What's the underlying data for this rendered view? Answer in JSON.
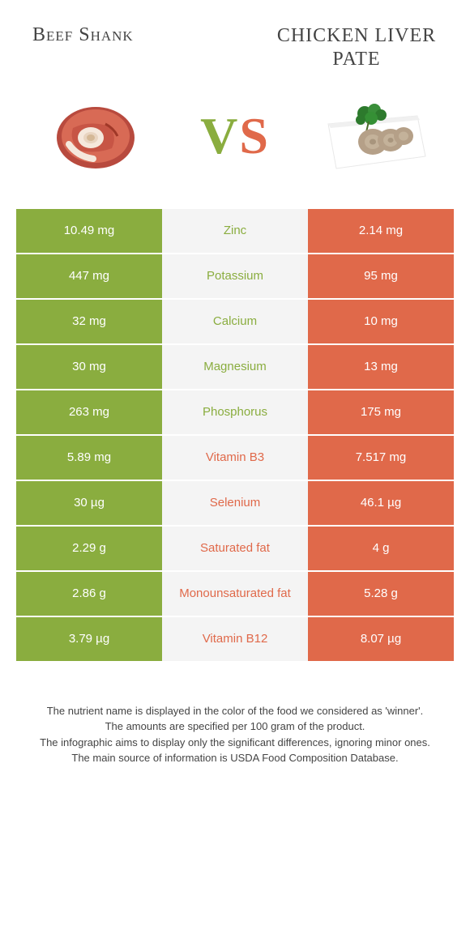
{
  "header": {
    "left_title": "Beef Shank",
    "right_title": "CHICKEN LIVER PATE",
    "vs": "VS"
  },
  "colors": {
    "green": "#8aad3f",
    "orange": "#e0694a",
    "mid_bg": "#f4f4f4"
  },
  "rows": [
    {
      "label": "Zinc",
      "left": "10.49 mg",
      "right": "2.14 mg",
      "winner": "left"
    },
    {
      "label": "Potassium",
      "left": "447 mg",
      "right": "95 mg",
      "winner": "left"
    },
    {
      "label": "Calcium",
      "left": "32 mg",
      "right": "10 mg",
      "winner": "left"
    },
    {
      "label": "Magnesium",
      "left": "30 mg",
      "right": "13 mg",
      "winner": "left"
    },
    {
      "label": "Phosphorus",
      "left": "263 mg",
      "right": "175 mg",
      "winner": "left"
    },
    {
      "label": "Vitamin B3",
      "left": "5.89 mg",
      "right": "7.517 mg",
      "winner": "right"
    },
    {
      "label": "Selenium",
      "left": "30 µg",
      "right": "46.1 µg",
      "winner": "right"
    },
    {
      "label": "Saturated fat",
      "left": "2.29 g",
      "right": "4 g",
      "winner": "right"
    },
    {
      "label": "Monounsaturated fat",
      "left": "2.86 g",
      "right": "5.28 g",
      "winner": "right"
    },
    {
      "label": "Vitamin B12",
      "left": "3.79 µg",
      "right": "8.07 µg",
      "winner": "right"
    }
  ],
  "footer": {
    "line1": "The nutrient name is displayed in the color of the food we considered as 'winner'.",
    "line2": "The amounts are specified per 100 gram of the product.",
    "line3": "The infographic aims to display only the significant differences, ignoring minor ones.",
    "line4": "The main source of information is USDA Food Composition Database."
  }
}
